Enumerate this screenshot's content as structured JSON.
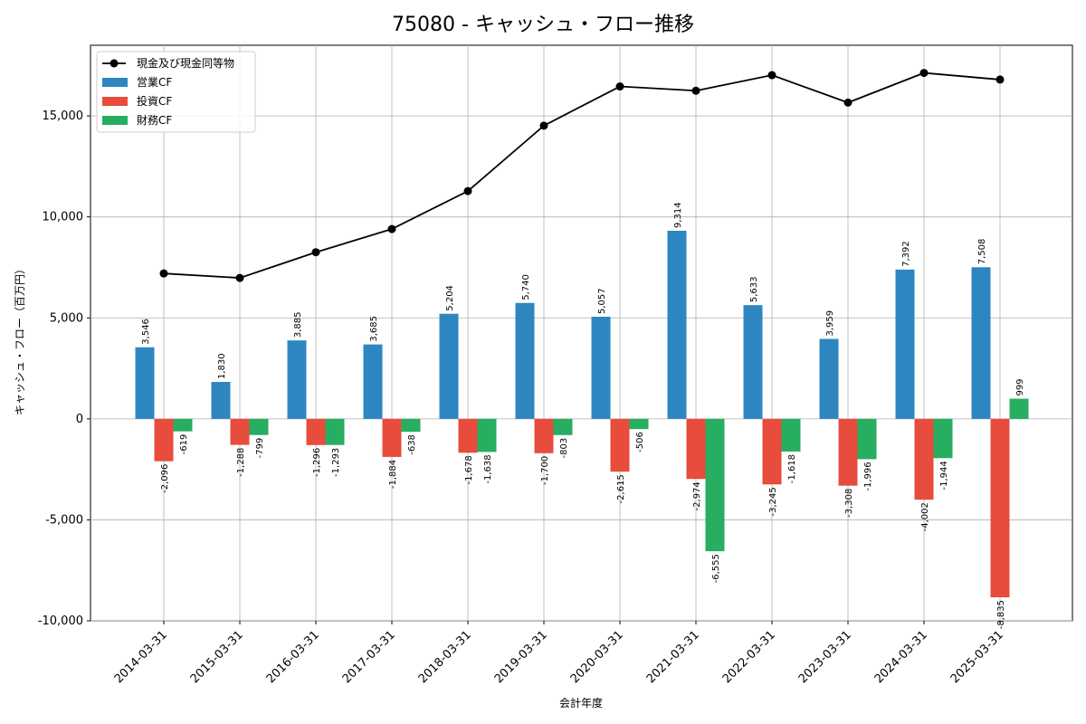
{
  "chart_data": {
    "type": "bar",
    "title": "75080 - キャッシュ・フロー推移",
    "xlabel": "会計年度",
    "ylabel": "キャッシュ・フロー（百万円）",
    "categories": [
      "2014-03-31",
      "2015-03-31",
      "2016-03-31",
      "2017-03-31",
      "2018-03-31",
      "2019-03-31",
      "2020-03-31",
      "2021-03-31",
      "2022-03-31",
      "2023-03-31",
      "2024-03-31",
      "2025-03-31"
    ],
    "ylim": [
      -10000,
      18500
    ],
    "yticks": [
      -10000,
      -5000,
      0,
      5000,
      10000,
      15000
    ],
    "ytick_labels": [
      "-10,000",
      "-5,000",
      "0",
      "5,000",
      "10,000",
      "15,000"
    ],
    "grid": true,
    "legend_position": "top-left",
    "series": [
      {
        "name": "営業CF",
        "kind": "bar",
        "color": "#2E86C1",
        "values": [
          3546,
          1830,
          3885,
          3685,
          5204,
          5740,
          5057,
          9314,
          5633,
          3959,
          7392,
          7508
        ],
        "labels": [
          "3,546",
          "1,830",
          "3,885",
          "3,685",
          "5,204",
          "5,740",
          "5,057",
          "9,314",
          "5,633",
          "3,959",
          "7,392",
          "7,508"
        ]
      },
      {
        "name": "投資CF",
        "kind": "bar",
        "color": "#E74C3C",
        "values": [
          -2096,
          -1288,
          -1296,
          -1884,
          -1678,
          -1700,
          -2615,
          -2974,
          -3245,
          -3308,
          -4002,
          -8835
        ],
        "labels": [
          "-2,096",
          "-1,288",
          "-1,296",
          "-1,884",
          "-1,678",
          "-1,700",
          "-2,615",
          "-2,974",
          "-3,245",
          "-3,308",
          "-4,002",
          "-8,835"
        ]
      },
      {
        "name": "財務CF",
        "kind": "bar",
        "color": "#27AE60",
        "values": [
          -619,
          -799,
          -1293,
          -638,
          -1638,
          -803,
          -506,
          -6555,
          -1618,
          -1996,
          -1944,
          999
        ],
        "labels": [
          "-619",
          "-799",
          "-1,293",
          "-638",
          "-1,638",
          "-803",
          "-506",
          "-6,555",
          "-1,618",
          "-1,996",
          "-1,944",
          "999"
        ]
      },
      {
        "name": "現金及び現金同等物",
        "kind": "line",
        "color": "#000000",
        "values": [
          7200,
          6980,
          8250,
          9400,
          11280,
          14520,
          16460,
          16250,
          17020,
          15660,
          17130,
          16800
        ]
      }
    ]
  }
}
